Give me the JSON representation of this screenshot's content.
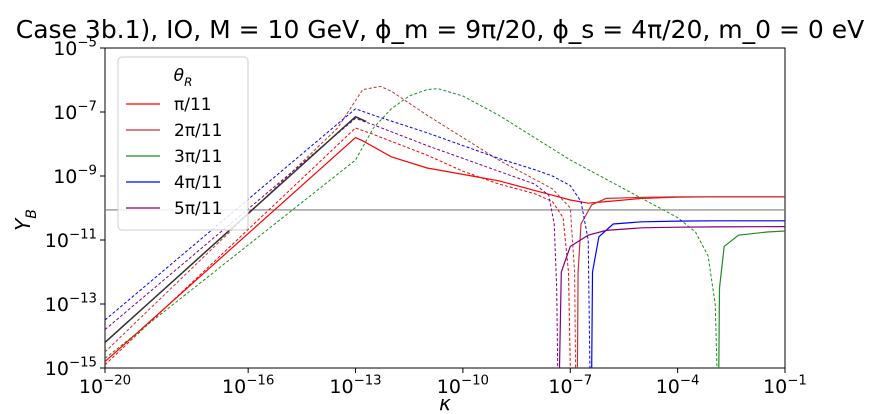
{
  "chart_data": {
    "type": "line",
    "title": "Case 3b.1), IO, M = 10 GeV, ϕ_m = 9π/20, ϕ_s = 4π/20, m_0 = 0 eV",
    "xlabel": "κ",
    "ylabel": "Y_B",
    "xscale": "log",
    "yscale": "log",
    "xlim": [
      1e-20,
      0.1
    ],
    "ylim": [
      1e-15,
      1e-05
    ],
    "xticks": [
      {
        "exp": -20,
        "label": "10^-20"
      },
      {
        "exp": -16,
        "label": "10^-16"
      },
      {
        "exp": -13,
        "label": "10^-13"
      },
      {
        "exp": -10,
        "label": "10^-10"
      },
      {
        "exp": -7,
        "label": "10^-7"
      },
      {
        "exp": -4,
        "label": "10^-4"
      },
      {
        "exp": -1,
        "label": "10^-1"
      }
    ],
    "yticks": [
      {
        "exp": -15,
        "label": "10^-15"
      },
      {
        "exp": -13,
        "label": "10^-13"
      },
      {
        "exp": -11,
        "label": "10^-11"
      },
      {
        "exp": -9,
        "label": "10^-9"
      },
      {
        "exp": -7,
        "label": "10^-7"
      },
      {
        "exp": -5,
        "label": "10^-5"
      }
    ],
    "observed_line": {
      "log10_y": -10.06,
      "color": "#808080"
    },
    "legend": {
      "title": "θ_R",
      "placement": "top-left"
    },
    "series": [
      {
        "name": "π/11",
        "color": "#ff0000",
        "solid": [
          [
            -20,
            -14.8
          ],
          [
            -13,
            -7.8
          ],
          [
            -12.8,
            -7.9
          ],
          [
            -12,
            -8.4
          ],
          [
            -11,
            -8.75
          ],
          [
            -10,
            -8.95
          ],
          [
            -9,
            -9.15
          ],
          [
            -8,
            -9.45
          ],
          [
            -7.5,
            -9.6
          ],
          [
            -7,
            -9.75
          ],
          [
            -6.5,
            -9.85
          ],
          [
            -6,
            -9.8
          ],
          [
            -5,
            -9.7
          ],
          [
            -4,
            -9.66
          ],
          [
            -3,
            -9.65
          ],
          [
            -2,
            -9.65
          ],
          [
            -1,
            -9.65
          ]
        ],
        "dashed": [
          [
            -20,
            -14.9
          ],
          [
            -13,
            -7.5
          ],
          [
            -12.5,
            -7.7
          ],
          [
            -11,
            -8.35
          ],
          [
            -10,
            -8.85
          ],
          [
            -9,
            -9.25
          ],
          [
            -8,
            -9.55
          ],
          [
            -7.5,
            -9.8
          ],
          [
            -7.2,
            -10.3
          ],
          [
            -7.05,
            -12
          ],
          [
            -7,
            -15
          ]
        ]
      },
      {
        "name": "2π/11",
        "color": "#c83232",
        "solid": [
          [
            -6.8,
            -15
          ],
          [
            -6.78,
            -12
          ],
          [
            -6.7,
            -10.5
          ],
          [
            -6.4,
            -9.9
          ],
          [
            -6,
            -9.7
          ],
          [
            -5,
            -9.67
          ],
          [
            -4,
            -9.65
          ],
          [
            -3,
            -9.65
          ],
          [
            -1,
            -9.65
          ]
        ],
        "dashed": [
          [
            -20,
            -14.5
          ],
          [
            -13.5,
            -7.5
          ],
          [
            -12.8,
            -6.3
          ],
          [
            -12.3,
            -6.2
          ],
          [
            -12,
            -6.35
          ],
          [
            -11,
            -7.1
          ],
          [
            -10,
            -7.8
          ],
          [
            -9,
            -8.5
          ],
          [
            -8,
            -9.1
          ],
          [
            -7.5,
            -9.4
          ],
          [
            -7,
            -10
          ],
          [
            -6.88,
            -12
          ],
          [
            -6.85,
            -15
          ]
        ]
      },
      {
        "name": "3π/11",
        "color": "#228b22",
        "solid": [
          [
            -2.85,
            -15
          ],
          [
            -2.83,
            -12.5
          ],
          [
            -2.7,
            -11.2
          ],
          [
            -2.3,
            -10.85
          ],
          [
            -1.5,
            -10.75
          ],
          [
            -1,
            -10.72
          ]
        ],
        "dashed": [
          [
            -20,
            -14.7
          ],
          [
            -13,
            -8.5
          ],
          [
            -12.5,
            -7.5
          ],
          [
            -12,
            -6.9
          ],
          [
            -11.5,
            -6.5
          ],
          [
            -11,
            -6.3
          ],
          [
            -10.7,
            -6.27
          ],
          [
            -10,
            -6.5
          ],
          [
            -9,
            -7.1
          ],
          [
            -8,
            -7.8
          ],
          [
            -7,
            -8.5
          ],
          [
            -6,
            -9.1
          ],
          [
            -5,
            -9.7
          ],
          [
            -4,
            -10.3
          ],
          [
            -3.5,
            -10.75
          ],
          [
            -3.15,
            -11.5
          ],
          [
            -2.95,
            -13
          ],
          [
            -2.9,
            -15
          ]
        ]
      },
      {
        "name": "4π/11",
        "color": "#0000ff",
        "solid": [
          [
            -6.4,
            -15
          ],
          [
            -6.38,
            -12
          ],
          [
            -6.2,
            -10.9
          ],
          [
            -5.8,
            -10.5
          ],
          [
            -5,
            -10.43
          ],
          [
            -4,
            -10.41
          ],
          [
            -3,
            -10.4
          ],
          [
            -1,
            -10.4
          ]
        ],
        "dashed": [
          [
            -20,
            -13.5
          ],
          [
            -13,
            -6.9
          ],
          [
            -12.5,
            -7.1
          ],
          [
            -11,
            -7.65
          ],
          [
            -10,
            -8.05
          ],
          [
            -9,
            -8.45
          ],
          [
            -8,
            -8.8
          ],
          [
            -7.5,
            -9.0
          ],
          [
            -7,
            -9.3
          ],
          [
            -6.7,
            -9.8
          ],
          [
            -6.5,
            -11
          ],
          [
            -6.45,
            -15
          ]
        ]
      },
      {
        "name": "5π/11",
        "color": "#800080",
        "solid": [
          [
            -7.3,
            -15
          ],
          [
            -7.25,
            -12
          ],
          [
            -7,
            -11.2
          ],
          [
            -6.5,
            -10.85
          ],
          [
            -6,
            -10.7
          ],
          [
            -5,
            -10.62
          ],
          [
            -4,
            -10.6
          ],
          [
            -3,
            -10.59
          ],
          [
            -1,
            -10.58
          ]
        ],
        "dashed": [
          [
            -20,
            -13.8
          ],
          [
            -13,
            -7.2
          ],
          [
            -12.5,
            -7.4
          ],
          [
            -11,
            -8.05
          ],
          [
            -10,
            -8.45
          ],
          [
            -9,
            -8.85
          ],
          [
            -8,
            -9.25
          ],
          [
            -7.6,
            -9.6
          ],
          [
            -7.45,
            -10.5
          ],
          [
            -7.38,
            -12.5
          ],
          [
            -7.35,
            -15
          ]
        ]
      }
    ],
    "black_curve": {
      "color": "#333333",
      "points": [
        [
          -20,
          -14.2
        ],
        [
          -13,
          -7.15
        ],
        [
          -12.7,
          -7.3
        ]
      ]
    }
  }
}
